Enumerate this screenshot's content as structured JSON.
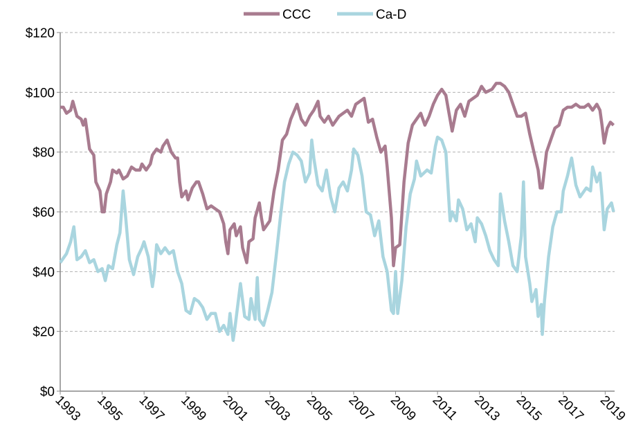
{
  "chart_data": {
    "type": "line",
    "xlim": [
      1993,
      2019.45
    ],
    "xticks": [
      1993,
      1995,
      1997,
      1999,
      2001,
      2003,
      2005,
      2007,
      2009,
      2011,
      2013,
      2015,
      2017,
      2019
    ],
    "ylim": [
      0,
      120
    ],
    "yticks": [
      {
        "value": 0,
        "label": "$0"
      },
      {
        "value": 20,
        "label": "$20"
      },
      {
        "value": 40,
        "label": "$40"
      },
      {
        "value": 60,
        "label": "$60"
      },
      {
        "value": 80,
        "label": "$80"
      },
      {
        "value": 100,
        "label": "$100"
      },
      {
        "value": 120,
        "label": "$120"
      }
    ],
    "grid": true,
    "legend": "top",
    "series": [
      {
        "name": "CCC",
        "color": "#a87b8f",
        "x": [
          1993.0,
          1993.15,
          1993.3,
          1993.5,
          1993.6,
          1993.8,
          1994.0,
          1994.1,
          1994.2,
          1994.3,
          1994.4,
          1994.6,
          1994.7,
          1994.9,
          1995.0,
          1995.1,
          1995.2,
          1995.4,
          1995.5,
          1995.7,
          1995.8,
          1996.0,
          1996.2,
          1996.4,
          1996.6,
          1996.8,
          1996.9,
          1997.1,
          1997.3,
          1997.4,
          1997.6,
          1997.8,
          1997.9,
          1998.1,
          1998.3,
          1998.5,
          1998.6,
          1998.7,
          1998.8,
          1999.0,
          1999.1,
          1999.3,
          1999.5,
          1999.6,
          1999.8,
          2000.0,
          2000.2,
          2000.4,
          2000.6,
          2000.8,
          2000.9,
          2001.0,
          2001.1,
          2001.3,
          2001.4,
          2001.6,
          2001.7,
          2001.9,
          2002.0,
          2002.2,
          2002.3,
          2002.5,
          2002.6,
          2002.7,
          2002.9,
          2003.0,
          2003.2,
          2003.4,
          2003.6,
          2003.8,
          2004.0,
          2004.3,
          2004.5,
          2004.7,
          2004.9,
          2005.1,
          2005.3,
          2005.4,
          2005.6,
          2005.8,
          2006.0,
          2006.3,
          2006.5,
          2006.7,
          2006.9,
          2007.1,
          2007.3,
          2007.5,
          2007.7,
          2007.9,
          2008.1,
          2008.3,
          2008.5,
          2008.6,
          2008.8,
          2008.9,
          2009.0,
          2009.2,
          2009.4,
          2009.6,
          2009.8,
          2010.0,
          2010.2,
          2010.4,
          2010.6,
          2010.8,
          2011.0,
          2011.2,
          2011.4,
          2011.5,
          2011.7,
          2011.9,
          2012.1,
          2012.3,
          2012.5,
          2012.7,
          2012.9,
          2013.1,
          2013.3,
          2013.6,
          2013.8,
          2014.0,
          2014.2,
          2014.4,
          2014.6,
          2014.8,
          2015.0,
          2015.2,
          2015.4,
          2015.6,
          2015.8,
          2015.9,
          2016.0,
          2016.2,
          2016.4,
          2016.6,
          2016.8,
          2017.0,
          2017.2,
          2017.4,
          2017.6,
          2017.8,
          2018.0,
          2018.2,
          2018.4,
          2018.6,
          2018.75,
          2018.85,
          2018.95,
          2019.1,
          2019.25,
          2019.4
        ],
        "values": [
          95,
          95,
          93,
          94,
          97,
          92,
          91,
          89,
          91,
          86,
          81,
          79,
          70,
          67,
          60,
          60,
          66,
          70,
          74,
          73,
          74,
          71,
          72,
          75,
          74,
          74,
          76,
          74,
          76,
          79,
          81,
          80,
          82,
          84,
          80,
          78,
          78,
          70,
          65,
          67,
          64,
          68,
          70,
          70,
          66,
          61,
          62,
          61,
          60,
          56,
          50,
          46,
          54,
          56,
          52,
          55,
          48,
          43,
          50,
          51,
          58,
          63,
          58,
          54,
          56,
          57,
          67,
          74,
          84,
          86,
          91,
          96,
          91,
          89,
          92,
          94,
          97,
          92,
          90,
          92,
          89,
          92,
          93,
          94,
          92,
          96,
          97,
          98,
          90,
          91,
          85,
          80,
          82,
          75,
          58,
          42,
          48,
          49,
          70,
          83,
          89,
          91,
          93,
          89,
          92,
          96,
          99,
          101,
          99,
          95,
          87,
          94,
          96,
          92,
          97,
          98,
          99,
          102,
          100,
          101,
          103,
          103,
          102,
          100,
          96,
          92,
          92,
          93,
          86,
          80,
          74,
          68,
          68,
          80,
          84,
          88,
          89,
          94,
          95,
          95,
          96,
          95,
          95,
          96,
          94,
          96,
          94,
          89,
          83,
          88,
          90,
          89
        ]
      },
      {
        "name": "Ca-D",
        "color": "#a9d5df",
        "x": [
          1993.0,
          1993.3,
          1993.5,
          1993.65,
          1993.8,
          1994.0,
          1994.2,
          1994.4,
          1994.6,
          1994.8,
          1995.0,
          1995.15,
          1995.3,
          1995.5,
          1995.7,
          1995.85,
          1996.0,
          1996.1,
          1996.3,
          1996.5,
          1996.7,
          1996.9,
          1997.0,
          1997.2,
          1997.4,
          1997.5,
          1997.6,
          1997.8,
          1998.0,
          1998.2,
          1998.4,
          1998.6,
          1998.8,
          1999.0,
          1999.2,
          1999.4,
          1999.6,
          1999.8,
          2000.0,
          2000.2,
          2000.4,
          2000.6,
          2000.8,
          2001.0,
          2001.1,
          2001.25,
          2001.35,
          2001.6,
          2001.8,
          2002.0,
          2002.1,
          2002.3,
          2002.4,
          2002.5,
          2002.7,
          2002.9,
          2003.1,
          2003.3,
          2003.5,
          2003.7,
          2003.9,
          2004.1,
          2004.3,
          2004.5,
          2004.7,
          2004.9,
          2005.0,
          2005.1,
          2005.3,
          2005.5,
          2005.7,
          2005.9,
          2006.1,
          2006.3,
          2006.5,
          2006.7,
          2006.9,
          2007.0,
          2007.2,
          2007.4,
          2007.6,
          2007.8,
          2008.0,
          2008.2,
          2008.4,
          2008.6,
          2008.8,
          2008.9,
          2009.0,
          2009.1,
          2009.3,
          2009.5,
          2009.7,
          2009.9,
          2010.0,
          2010.2,
          2010.5,
          2010.7,
          2010.9,
          2011.0,
          2011.2,
          2011.4,
          2011.6,
          2011.7,
          2011.9,
          2012.0,
          2012.2,
          2012.4,
          2012.6,
          2012.8,
          2012.9,
          2013.1,
          2013.3,
          2013.5,
          2013.7,
          2013.9,
          2014.0,
          2014.2,
          2014.4,
          2014.6,
          2014.8,
          2015.0,
          2015.1,
          2015.2,
          2015.4,
          2015.5,
          2015.7,
          2015.8,
          2015.95,
          2016.0,
          2016.1,
          2016.3,
          2016.5,
          2016.7,
          2016.9,
          2017.0,
          2017.2,
          2017.4,
          2017.6,
          2017.8,
          2017.9,
          2018.1,
          2018.3,
          2018.4,
          2018.6,
          2018.75,
          2018.85,
          2018.95,
          2019.1,
          2019.3,
          2019.4
        ],
        "values": [
          43,
          46,
          50,
          55,
          44,
          45,
          47,
          43,
          44,
          40,
          41,
          37,
          42,
          41,
          49,
          53,
          67,
          60,
          44,
          39,
          45,
          48,
          50,
          45,
          35,
          40,
          49,
          46,
          48,
          46,
          47,
          40,
          36,
          27,
          26,
          31,
          30,
          28,
          24,
          26,
          26,
          20,
          22,
          19,
          26,
          17,
          22,
          36,
          25,
          24,
          31,
          24,
          38,
          24,
          22,
          27,
          33,
          45,
          58,
          70,
          76,
          80,
          79,
          77,
          70,
          73,
          84,
          78,
          69,
          67,
          74,
          65,
          60,
          68,
          70,
          67,
          74,
          81,
          79,
          72,
          60,
          59,
          52,
          57,
          45,
          40,
          27,
          26,
          40,
          26,
          37,
          55,
          66,
          71,
          77,
          72,
          74,
          73,
          82,
          85,
          84,
          80,
          57,
          60,
          57,
          64,
          61,
          54,
          56,
          50,
          58,
          56,
          52,
          47,
          44,
          42,
          66,
          57,
          50,
          42,
          40,
          52,
          70,
          45,
          36,
          30,
          34,
          25,
          29,
          19,
          30,
          45,
          55,
          60,
          60,
          67,
          72,
          78,
          69,
          65,
          66,
          68,
          67,
          75,
          70,
          73,
          65,
          54,
          61,
          63,
          60
        ]
      }
    ]
  }
}
